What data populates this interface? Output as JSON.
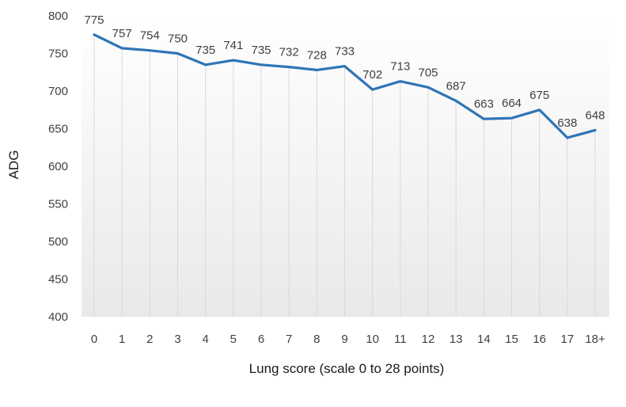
{
  "chart_data": {
    "type": "line",
    "title": "",
    "xlabel": "Lung score (scale 0 to 28 points)",
    "ylabel": "ADG",
    "ylim": [
      400,
      800
    ],
    "yticks": [
      400,
      450,
      500,
      550,
      600,
      650,
      700,
      750,
      800
    ],
    "categories": [
      "0",
      "1",
      "2",
      "3",
      "4",
      "5",
      "6",
      "7",
      "8",
      "9",
      "10",
      "11",
      "12",
      "13",
      "14",
      "15",
      "16",
      "17",
      "18+"
    ],
    "series": [
      {
        "values": [
          775,
          757,
          754,
          750,
          735,
          741,
          735,
          732,
          728,
          733,
          702,
          713,
          705,
          687,
          663,
          664,
          675,
          638,
          648
        ],
        "color": "#2e75b6",
        "data_labels": [
          "775",
          "757",
          "754",
          "750",
          "735",
          "741",
          "735",
          "732",
          "728",
          "733",
          "702",
          "713",
          "705",
          "687",
          "663",
          "664",
          "675",
          "638",
          "648"
        ]
      }
    ],
    "grid": false,
    "drop_lines": true,
    "area_gradient": true
  }
}
